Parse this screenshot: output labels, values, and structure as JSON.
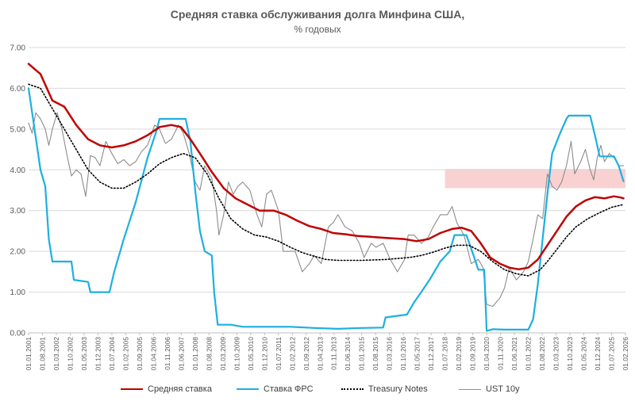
{
  "chart_data": {
    "type": "line",
    "title": "Средняя ставка обслуживания долга Минфина США,",
    "subtitle": "% годовых",
    "ylim": [
      0,
      7
    ],
    "yticks": [
      "0.00",
      "1.00",
      "2.00",
      "3.00",
      "4.00",
      "5.00",
      "6.00",
      "7.00"
    ],
    "grid": "horizontal",
    "legend_position": "bottom",
    "x_tick_labels": [
      "01.01.2001",
      "01.08.2001",
      "01.03.2002",
      "01.10.2002",
      "01.05.2003",
      "01.12.2003",
      "01.07.2004",
      "01.02.2005",
      "01.09.2005",
      "01.04.2006",
      "01.11.2006",
      "01.06.2007",
      "01.01.2008",
      "01.08.2008",
      "01.03.2009",
      "01.10.2009",
      "01.05.2010",
      "01.12.2010",
      "01.07.2011",
      "01.02.2012",
      "01.09.2012",
      "01.04.2013",
      "01.11.2013",
      "01.06.2014",
      "01.01.2015",
      "01.08.2015",
      "01.03.2016",
      "01.10.2016",
      "01.05.2017",
      "01.12.2017",
      "01.07.2018",
      "01.02.2019",
      "01.09.2019",
      "01.04.2020",
      "01.11.2020",
      "01.06.2021",
      "01.01.2022",
      "01.08.2022",
      "01.03.2023",
      "01.10.2023",
      "01.05.2024",
      "01.12.2024",
      "01.07.2025",
      "01.02.2026"
    ],
    "highlight_band": {
      "x_from": "01.07.2018",
      "x_to": "01.02.2026",
      "y_from": 3.55,
      "y_to": 4.02,
      "color": "#f9c9c9"
    },
    "series": [
      {
        "name": "Средняя ставка",
        "color": "#c00000",
        "style": "solid",
        "points": [
          [
            2001.0,
            6.6
          ],
          [
            2001.5,
            6.35
          ],
          [
            2002.0,
            5.7
          ],
          [
            2002.5,
            5.55
          ],
          [
            2003.0,
            5.1
          ],
          [
            2003.5,
            4.75
          ],
          [
            2004.0,
            4.6
          ],
          [
            2004.5,
            4.55
          ],
          [
            2005.0,
            4.6
          ],
          [
            2005.5,
            4.7
          ],
          [
            2006.0,
            4.85
          ],
          [
            2006.5,
            5.05
          ],
          [
            2007.0,
            5.1
          ],
          [
            2007.4,
            5.05
          ],
          [
            2007.8,
            4.75
          ],
          [
            2008.2,
            4.4
          ],
          [
            2008.7,
            3.95
          ],
          [
            2009.2,
            3.55
          ],
          [
            2009.7,
            3.3
          ],
          [
            2010.2,
            3.15
          ],
          [
            2010.7,
            3.0
          ],
          [
            2011.3,
            3.0
          ],
          [
            2011.8,
            2.9
          ],
          [
            2012.3,
            2.75
          ],
          [
            2012.8,
            2.62
          ],
          [
            2013.3,
            2.55
          ],
          [
            2013.8,
            2.45
          ],
          [
            2014.3,
            2.42
          ],
          [
            2014.8,
            2.38
          ],
          [
            2015.3,
            2.36
          ],
          [
            2015.8,
            2.34
          ],
          [
            2016.3,
            2.32
          ],
          [
            2016.8,
            2.3
          ],
          [
            2017.3,
            2.25
          ],
          [
            2017.8,
            2.3
          ],
          [
            2018.3,
            2.45
          ],
          [
            2018.8,
            2.55
          ],
          [
            2019.2,
            2.58
          ],
          [
            2019.6,
            2.5
          ],
          [
            2020.0,
            2.2
          ],
          [
            2020.4,
            1.85
          ],
          [
            2020.8,
            1.7
          ],
          [
            2021.2,
            1.6
          ],
          [
            2021.6,
            1.56
          ],
          [
            2022.0,
            1.6
          ],
          [
            2022.4,
            1.8
          ],
          [
            2022.8,
            2.15
          ],
          [
            2023.2,
            2.5
          ],
          [
            2023.6,
            2.85
          ],
          [
            2024.0,
            3.1
          ],
          [
            2024.4,
            3.25
          ],
          [
            2024.8,
            3.33
          ],
          [
            2025.2,
            3.3
          ],
          [
            2025.6,
            3.35
          ],
          [
            2025.9,
            3.32
          ],
          [
            2026.0,
            3.3
          ]
        ]
      },
      {
        "name": "Ставка ФРС",
        "color": "#1cb0e0",
        "style": "solid",
        "points": [
          [
            2001.0,
            6.0
          ],
          [
            2001.2,
            5.2
          ],
          [
            2001.5,
            4.0
          ],
          [
            2001.7,
            3.6
          ],
          [
            2001.85,
            2.3
          ],
          [
            2002.0,
            1.75
          ],
          [
            2002.8,
            1.75
          ],
          [
            2002.9,
            1.3
          ],
          [
            2003.5,
            1.25
          ],
          [
            2003.6,
            1.0
          ],
          [
            2004.4,
            1.0
          ],
          [
            2004.6,
            1.5
          ],
          [
            2005.0,
            2.3
          ],
          [
            2005.5,
            3.2
          ],
          [
            2006.0,
            4.3
          ],
          [
            2006.4,
            5.0
          ],
          [
            2006.5,
            5.25
          ],
          [
            2007.6,
            5.25
          ],
          [
            2007.8,
            4.7
          ],
          [
            2008.0,
            3.5
          ],
          [
            2008.2,
            2.5
          ],
          [
            2008.4,
            2.0
          ],
          [
            2008.7,
            1.9
          ],
          [
            2008.8,
            1.0
          ],
          [
            2008.95,
            0.2
          ],
          [
            2009.5,
            0.2
          ],
          [
            2010.0,
            0.15
          ],
          [
            2011.0,
            0.15
          ],
          [
            2012.0,
            0.15
          ],
          [
            2013.0,
            0.12
          ],
          [
            2014.0,
            0.1
          ],
          [
            2015.0,
            0.12
          ],
          [
            2015.9,
            0.13
          ],
          [
            2016.0,
            0.38
          ],
          [
            2016.9,
            0.45
          ],
          [
            2017.2,
            0.75
          ],
          [
            2017.5,
            1.0
          ],
          [
            2017.9,
            1.35
          ],
          [
            2018.3,
            1.75
          ],
          [
            2018.7,
            2.0
          ],
          [
            2018.9,
            2.4
          ],
          [
            2019.4,
            2.4
          ],
          [
            2019.7,
            1.9
          ],
          [
            2019.9,
            1.55
          ],
          [
            2020.15,
            1.55
          ],
          [
            2020.25,
            0.05
          ],
          [
            2020.5,
            0.09
          ],
          [
            2021.0,
            0.08
          ],
          [
            2022.0,
            0.08
          ],
          [
            2022.2,
            0.33
          ],
          [
            2022.4,
            1.2
          ],
          [
            2022.6,
            2.3
          ],
          [
            2022.8,
            3.4
          ],
          [
            2023.0,
            4.4
          ],
          [
            2023.3,
            4.85
          ],
          [
            2023.6,
            5.25
          ],
          [
            2023.7,
            5.33
          ],
          [
            2024.6,
            5.33
          ],
          [
            2024.8,
            4.85
          ],
          [
            2025.0,
            4.33
          ],
          [
            2025.6,
            4.33
          ],
          [
            2025.8,
            4.1
          ],
          [
            2026.0,
            3.72
          ]
        ]
      },
      {
        "name": "Treasury Notes",
        "color": "#000000",
        "style": "dotted",
        "points": [
          [
            2001.0,
            6.1
          ],
          [
            2001.5,
            6.0
          ],
          [
            2002.0,
            5.5
          ],
          [
            2002.5,
            5.0
          ],
          [
            2003.0,
            4.5
          ],
          [
            2003.5,
            4.0
          ],
          [
            2004.0,
            3.7
          ],
          [
            2004.5,
            3.55
          ],
          [
            2005.0,
            3.55
          ],
          [
            2005.5,
            3.7
          ],
          [
            2006.0,
            3.9
          ],
          [
            2006.5,
            4.15
          ],
          [
            2007.0,
            4.3
          ],
          [
            2007.5,
            4.4
          ],
          [
            2008.0,
            4.3
          ],
          [
            2008.5,
            3.9
          ],
          [
            2009.0,
            3.3
          ],
          [
            2009.5,
            2.8
          ],
          [
            2010.0,
            2.55
          ],
          [
            2010.5,
            2.4
          ],
          [
            2011.0,
            2.35
          ],
          [
            2011.5,
            2.25
          ],
          [
            2012.0,
            2.1
          ],
          [
            2012.5,
            1.97
          ],
          [
            2013.0,
            1.88
          ],
          [
            2013.5,
            1.8
          ],
          [
            2014.0,
            1.78
          ],
          [
            2015.0,
            1.78
          ],
          [
            2016.0,
            1.8
          ],
          [
            2017.0,
            1.85
          ],
          [
            2017.5,
            1.9
          ],
          [
            2018.0,
            1.98
          ],
          [
            2018.5,
            2.08
          ],
          [
            2019.0,
            2.15
          ],
          [
            2019.5,
            2.15
          ],
          [
            2020.0,
            2.0
          ],
          [
            2020.5,
            1.75
          ],
          [
            2021.0,
            1.55
          ],
          [
            2021.5,
            1.45
          ],
          [
            2022.0,
            1.4
          ],
          [
            2022.5,
            1.55
          ],
          [
            2022.8,
            1.75
          ],
          [
            2023.2,
            2.05
          ],
          [
            2023.6,
            2.35
          ],
          [
            2024.0,
            2.6
          ],
          [
            2024.5,
            2.8
          ],
          [
            2025.0,
            2.95
          ],
          [
            2025.5,
            3.08
          ],
          [
            2026.0,
            3.15
          ]
        ]
      },
      {
        "name": "UST 10y",
        "color": "#8c8c8c",
        "style": "solid",
        "points": [
          [
            2001.0,
            5.15
          ],
          [
            2001.15,
            4.9
          ],
          [
            2001.3,
            5.4
          ],
          [
            2001.5,
            5.25
          ],
          [
            2001.7,
            5.0
          ],
          [
            2001.85,
            4.6
          ],
          [
            2002.0,
            5.0
          ],
          [
            2002.2,
            5.4
          ],
          [
            2002.4,
            5.0
          ],
          [
            2002.6,
            4.4
          ],
          [
            2002.8,
            3.85
          ],
          [
            2003.0,
            4.0
          ],
          [
            2003.2,
            3.9
          ],
          [
            2003.4,
            3.35
          ],
          [
            2003.6,
            4.35
          ],
          [
            2003.8,
            4.3
          ],
          [
            2004.0,
            4.1
          ],
          [
            2004.25,
            4.7
          ],
          [
            2004.5,
            4.4
          ],
          [
            2004.75,
            4.15
          ],
          [
            2005.0,
            4.25
          ],
          [
            2005.25,
            4.1
          ],
          [
            2005.5,
            4.2
          ],
          [
            2005.75,
            4.45
          ],
          [
            2006.0,
            4.6
          ],
          [
            2006.3,
            5.1
          ],
          [
            2006.5,
            5.0
          ],
          [
            2006.75,
            4.65
          ],
          [
            2007.0,
            4.75
          ],
          [
            2007.3,
            5.1
          ],
          [
            2007.5,
            4.9
          ],
          [
            2007.75,
            4.4
          ],
          [
            2008.0,
            3.7
          ],
          [
            2008.2,
            3.5
          ],
          [
            2008.4,
            4.1
          ],
          [
            2008.7,
            3.8
          ],
          [
            2008.9,
            3.0
          ],
          [
            2009.0,
            2.4
          ],
          [
            2009.2,
            2.9
          ],
          [
            2009.4,
            3.7
          ],
          [
            2009.6,
            3.4
          ],
          [
            2009.8,
            3.6
          ],
          [
            2010.0,
            3.7
          ],
          [
            2010.3,
            3.5
          ],
          [
            2010.6,
            2.9
          ],
          [
            2010.8,
            2.6
          ],
          [
            2011.0,
            3.4
          ],
          [
            2011.2,
            3.5
          ],
          [
            2011.5,
            3.0
          ],
          [
            2011.7,
            2.0
          ],
          [
            2011.9,
            2.0
          ],
          [
            2012.2,
            2.0
          ],
          [
            2012.5,
            1.5
          ],
          [
            2012.8,
            1.7
          ],
          [
            2013.0,
            1.9
          ],
          [
            2013.3,
            1.7
          ],
          [
            2013.6,
            2.6
          ],
          [
            2013.8,
            2.7
          ],
          [
            2014.0,
            2.9
          ],
          [
            2014.3,
            2.6
          ],
          [
            2014.6,
            2.5
          ],
          [
            2014.9,
            2.2
          ],
          [
            2015.1,
            1.85
          ],
          [
            2015.4,
            2.2
          ],
          [
            2015.6,
            2.1
          ],
          [
            2015.9,
            2.2
          ],
          [
            2016.2,
            1.8
          ],
          [
            2016.5,
            1.5
          ],
          [
            2016.8,
            1.8
          ],
          [
            2016.95,
            2.4
          ],
          [
            2017.2,
            2.4
          ],
          [
            2017.5,
            2.2
          ],
          [
            2017.8,
            2.35
          ],
          [
            2018.0,
            2.6
          ],
          [
            2018.3,
            2.9
          ],
          [
            2018.6,
            2.9
          ],
          [
            2018.8,
            3.1
          ],
          [
            2019.0,
            2.7
          ],
          [
            2019.3,
            2.4
          ],
          [
            2019.6,
            1.7
          ],
          [
            2019.9,
            1.8
          ],
          [
            2020.1,
            1.6
          ],
          [
            2020.25,
            0.7
          ],
          [
            2020.5,
            0.65
          ],
          [
            2020.8,
            0.85
          ],
          [
            2021.0,
            1.1
          ],
          [
            2021.2,
            1.6
          ],
          [
            2021.5,
            1.3
          ],
          [
            2021.8,
            1.5
          ],
          [
            2022.0,
            1.75
          ],
          [
            2022.2,
            2.3
          ],
          [
            2022.4,
            2.9
          ],
          [
            2022.6,
            2.8
          ],
          [
            2022.8,
            3.9
          ],
          [
            2023.0,
            3.6
          ],
          [
            2023.2,
            3.5
          ],
          [
            2023.4,
            3.7
          ],
          [
            2023.6,
            4.1
          ],
          [
            2023.8,
            4.7
          ],
          [
            2023.95,
            3.9
          ],
          [
            2024.2,
            4.2
          ],
          [
            2024.4,
            4.5
          ],
          [
            2024.6,
            4.0
          ],
          [
            2024.75,
            3.75
          ],
          [
            2024.9,
            4.3
          ],
          [
            2025.05,
            4.6
          ],
          [
            2025.2,
            4.2
          ],
          [
            2025.4,
            4.4
          ],
          [
            2025.6,
            4.3
          ],
          [
            2025.8,
            4.1
          ],
          [
            2026.0,
            4.1
          ]
        ]
      }
    ]
  }
}
